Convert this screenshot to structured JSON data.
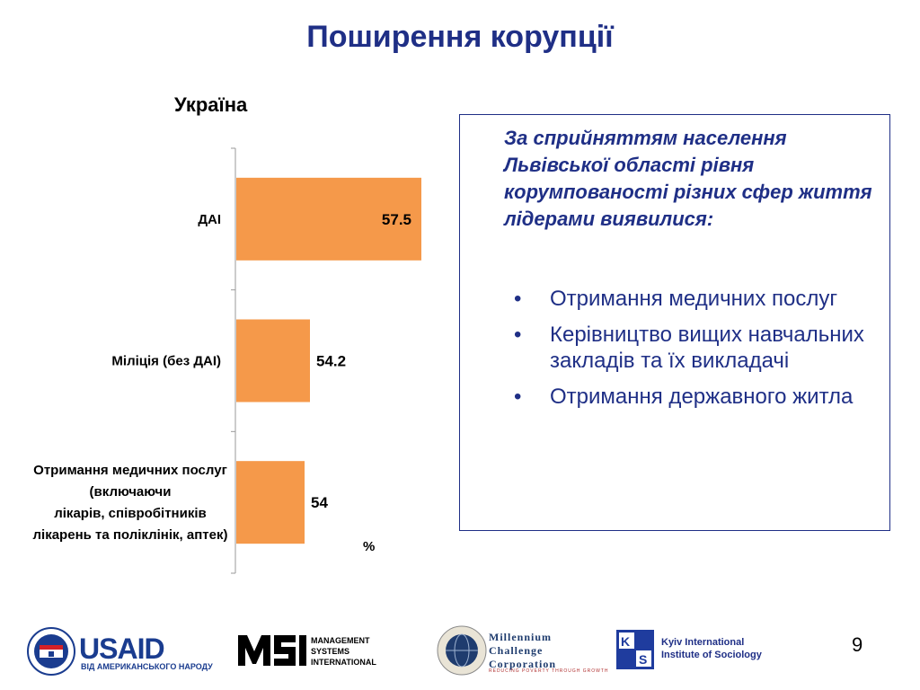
{
  "page": {
    "title": "Поширення корупції",
    "page_number": "9",
    "unit_label": "%"
  },
  "chart_data": {
    "type": "bar",
    "orientation": "horizontal",
    "title": "Україна",
    "categories": [
      "ДАІ",
      "Міліція (без ДАІ)",
      "Отримання  медичних послуг\n(включаючи\nлікарів, співробітників\nлікарень та поліклінік,  аптек)"
    ],
    "values": [
      57.5,
      54.2,
      54
    ],
    "value_labels": [
      "57.5",
      "54.2",
      "54"
    ],
    "bar_color": "#f5994a",
    "xlim": [
      0,
      100
    ],
    "grid": false
  },
  "info_box": {
    "heading": "За сприйняттям населення Львівської області рівня корумпованості різних сфер життя лідерами виявилися:",
    "bullet": "•",
    "items": [
      "Отримання медичних послуг",
      "Керівництво вищих навчальних закладів та їх викладачі",
      "Отримання державного житла"
    ],
    "text_color": "#1f2f86"
  },
  "logos": {
    "usaid": {
      "name": "USAID",
      "tagline": "ВІД АМЕРИКАНСЬКОГО НАРОДУ"
    },
    "msi": {
      "lines": [
        "MANAGEMENT",
        "SYSTEMS",
        "INTERNATIONAL"
      ]
    },
    "mcc": {
      "lines": [
        "Millennium",
        "Challenge",
        "Corporation"
      ],
      "tagline": "REDUCING POVERTY THROUGH GROWTH"
    },
    "kiis": {
      "lines": [
        "Kyiv International",
        "Institute of Sociology"
      ]
    }
  }
}
